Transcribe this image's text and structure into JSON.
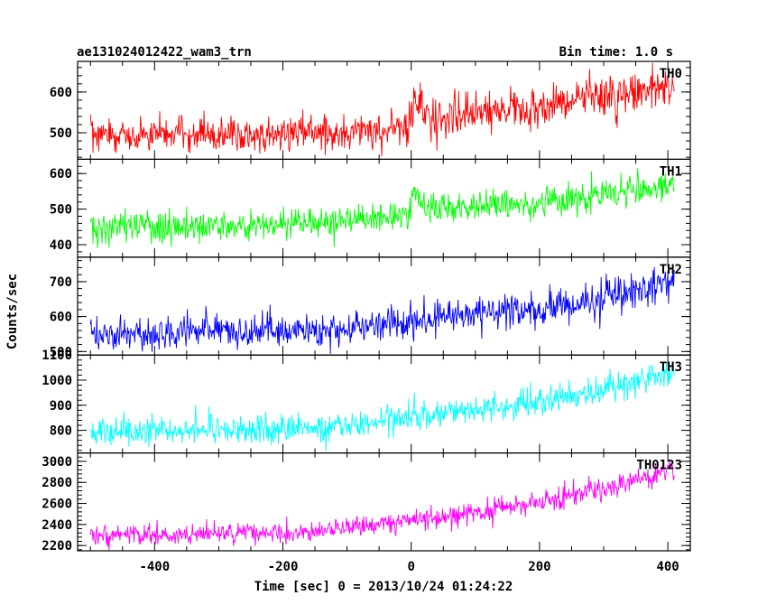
{
  "header": {
    "left_title": "ae131024012422_wam3_trn",
    "right_title": "Bin time: 1.0 s"
  },
  "chart_data": {
    "type": "line",
    "xlabel": "Time [sec] 0 = 2013/10/24 01:24:22",
    "ylabel": "Counts/sec",
    "xlim": [
      -520,
      435
    ],
    "x_ticks": [
      -400,
      -200,
      0,
      200,
      400
    ],
    "bin_time_s": 1.0,
    "grid": false,
    "panels": [
      {
        "name": "TH0",
        "color": "#ff0000",
        "ylim": [
          435,
          675
        ],
        "y_ticks": [
          500,
          600
        ],
        "trend": [
          {
            "x": -500,
            "y": 495
          },
          {
            "x": -200,
            "y": 498
          },
          {
            "x": -100,
            "y": 503
          },
          {
            "x": -5,
            "y": 510
          },
          {
            "x": 5,
            "y": 580
          },
          {
            "x": 20,
            "y": 540
          },
          {
            "x": 100,
            "y": 545
          },
          {
            "x": 200,
            "y": 563
          },
          {
            "x": 300,
            "y": 587
          },
          {
            "x": 410,
            "y": 610
          }
        ]
      },
      {
        "name": "TH1",
        "color": "#00ff00",
        "ylim": [
          365,
          640
        ],
        "y_ticks": [
          400,
          500,
          600
        ],
        "trend": [
          {
            "x": -500,
            "y": 450
          },
          {
            "x": -200,
            "y": 455
          },
          {
            "x": -100,
            "y": 465
          },
          {
            "x": -5,
            "y": 478
          },
          {
            "x": 5,
            "y": 560
          },
          {
            "x": 20,
            "y": 500
          },
          {
            "x": 100,
            "y": 500
          },
          {
            "x": 200,
            "y": 515
          },
          {
            "x": 300,
            "y": 540
          },
          {
            "x": 410,
            "y": 570
          }
        ]
      },
      {
        "name": "TH2",
        "color": "#0000ff",
        "ylim": [
          490,
          770
        ],
        "y_ticks": [
          500,
          600,
          700
        ],
        "trend": [
          {
            "x": -500,
            "y": 555
          },
          {
            "x": -200,
            "y": 558
          },
          {
            "x": -100,
            "y": 568
          },
          {
            "x": 0,
            "y": 585
          },
          {
            "x": 100,
            "y": 605
          },
          {
            "x": 200,
            "y": 620
          },
          {
            "x": 300,
            "y": 655
          },
          {
            "x": 410,
            "y": 700
          }
        ]
      },
      {
        "name": "TH3",
        "color": "#00ffff",
        "ylim": [
          710,
          1100
        ],
        "y_ticks": [
          800,
          900,
          1000,
          1100
        ],
        "trend": [
          {
            "x": -500,
            "y": 795
          },
          {
            "x": -200,
            "y": 805
          },
          {
            "x": -100,
            "y": 820
          },
          {
            "x": 0,
            "y": 850
          },
          {
            "x": 100,
            "y": 880
          },
          {
            "x": 200,
            "y": 915
          },
          {
            "x": 300,
            "y": 965
          },
          {
            "x": 410,
            "y": 1030
          }
        ]
      },
      {
        "name": "TH0123",
        "color": "#ff00ff",
        "ylim": [
          2150,
          3080
        ],
        "y_ticks": [
          2200,
          2400,
          2600,
          2800,
          3000
        ],
        "trend": [
          {
            "x": -500,
            "y": 2300
          },
          {
            "x": -200,
            "y": 2320
          },
          {
            "x": -100,
            "y": 2360
          },
          {
            "x": 0,
            "y": 2440
          },
          {
            "x": 100,
            "y": 2510
          },
          {
            "x": 200,
            "y": 2600
          },
          {
            "x": 300,
            "y": 2740
          },
          {
            "x": 410,
            "y": 2920
          }
        ]
      }
    ]
  }
}
